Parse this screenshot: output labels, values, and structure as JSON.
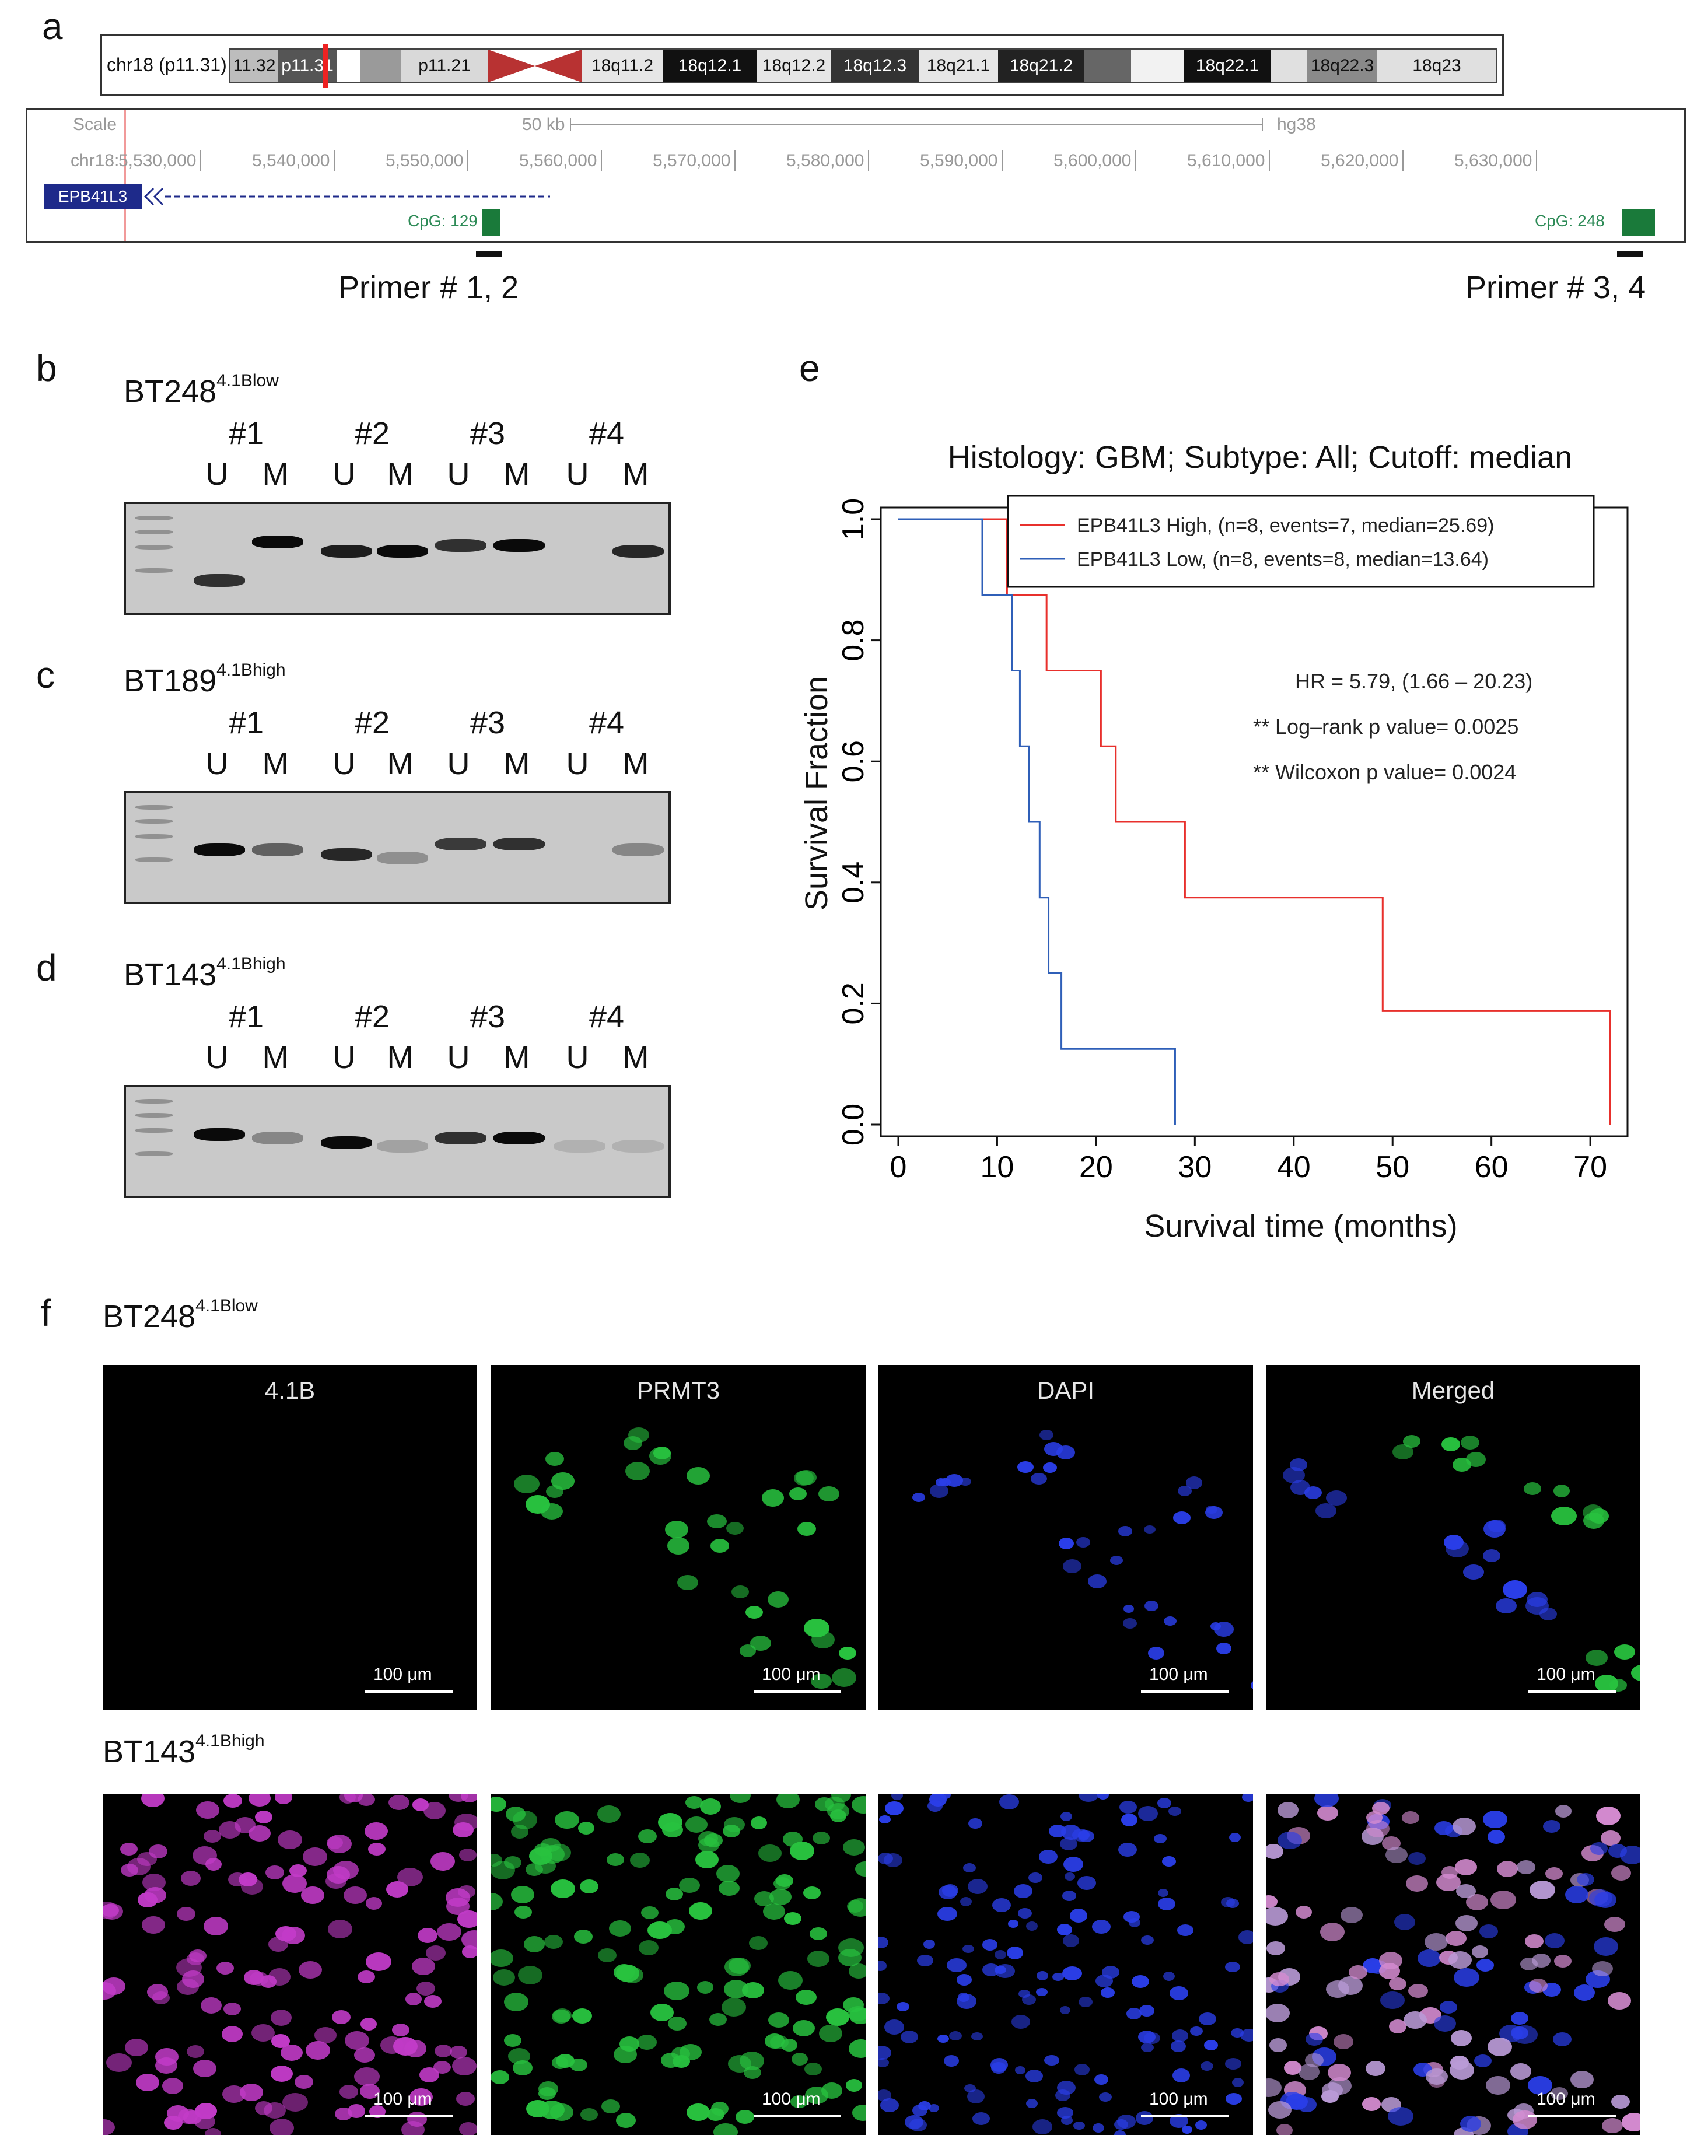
{
  "panels": {
    "a": "a",
    "b": "b",
    "c": "c",
    "d": "d",
    "e": "e",
    "f": "f"
  },
  "panel_a": {
    "chrom_label": "chr18 (p11.31)",
    "bands": [
      "11.32",
      "p11.31",
      "p11.21",
      "18q11.2",
      "18q12.1",
      "18q12.2",
      "18q12.3",
      "18q21.1",
      "18q21.2",
      "18q22.1",
      "18q22.3",
      "18q23"
    ],
    "scale_label": "Scale",
    "scale_value": "50 kb",
    "assembly": "hg38",
    "chr_label": "chr18:",
    "positions": [
      "5,530,000",
      "5,540,000",
      "5,550,000",
      "5,560,000",
      "5,570,000",
      "5,580,000",
      "5,590,000",
      "5,600,000",
      "5,610,000",
      "5,620,000",
      "5,630,000"
    ],
    "gene": "EPB41L3",
    "cpg_1": "CpG: 129",
    "cpg_2": "CpG: 248",
    "primer_1": "Primer # 1, 2",
    "primer_2": "Primer # 3, 4"
  },
  "gels": [
    {
      "cell": "BT248",
      "sup": "4.1Blow",
      "primers": [
        "#1",
        "#2",
        "#3",
        "#4"
      ],
      "lanes": [
        "U",
        "M",
        "U",
        "M",
        "U",
        "M",
        "U",
        "M"
      ]
    },
    {
      "cell": "BT189",
      "sup": "4.1Bhigh",
      "primers": [
        "#1",
        "#2",
        "#3",
        "#4"
      ],
      "lanes": [
        "U",
        "M",
        "U",
        "M",
        "U",
        "M",
        "U",
        "M"
      ]
    },
    {
      "cell": "BT143",
      "sup": "4.1Bhigh",
      "primers": [
        "#1",
        "#2",
        "#3",
        "#4"
      ],
      "lanes": [
        "U",
        "M",
        "U",
        "M",
        "U",
        "M",
        "U",
        "M"
      ]
    }
  ],
  "chart_data": {
    "type": "line",
    "title": "Histology: GBM; Subtype: All; Cutoff: median",
    "xlabel": "Survival time (months)",
    "ylabel": "Survival Fraction",
    "xlim": [
      0,
      72
    ],
    "ylim": [
      0,
      1
    ],
    "xticks": [
      "0",
      "10",
      "20",
      "30",
      "40",
      "50",
      "60",
      "70"
    ],
    "yticks": [
      "0.0",
      "0.2",
      "0.4",
      "0.6",
      "0.8",
      "1.0"
    ],
    "legend_position": "top-right",
    "series": [
      {
        "name": "EPB41L3 High, (n=8, events=7, median=25.69)",
        "color": "#e8302c",
        "x": [
          0,
          11,
          11,
          15,
          15,
          20.5,
          20.5,
          22,
          22,
          29,
          29,
          49,
          49,
          72,
          72
        ],
        "y": [
          1.0,
          1.0,
          0.875,
          0.875,
          0.75,
          0.75,
          0.625,
          0.625,
          0.5,
          0.5,
          0.375,
          0.375,
          0.1875,
          0.1875,
          0
        ]
      },
      {
        "name": "EPB41L3 Low, (n=8, events=8, median=13.64)",
        "color": "#2f5fb8",
        "x": [
          0,
          8.5,
          8.5,
          11.5,
          11.5,
          12.3,
          12.3,
          13.2,
          13.2,
          14.3,
          14.3,
          15.2,
          15.2,
          16.5,
          16.5,
          28,
          28
        ],
        "y": [
          1.0,
          1.0,
          0.875,
          0.875,
          0.75,
          0.75,
          0.625,
          0.625,
          0.5,
          0.5,
          0.375,
          0.375,
          0.25,
          0.25,
          0.125,
          0.125,
          0
        ]
      }
    ],
    "annotations": [
      "HR = 5.79, (1.66 – 20.23)",
      "** Log–rank p value= 0.0025",
      "** Wilcoxon p value= 0.0024"
    ]
  },
  "panel_f": {
    "row1": {
      "cell": "BT248",
      "sup": "4.1Blow"
    },
    "row2": {
      "cell": "BT143",
      "sup": "4.1Bhigh"
    },
    "channels": [
      "4.1B",
      "PRMT3",
      "DAPI",
      "Merged"
    ],
    "scale": "100 μm",
    "colors": {
      "magenta": "#c23bc8",
      "green": "#28c23f",
      "blue": "#2a3ee8"
    }
  }
}
